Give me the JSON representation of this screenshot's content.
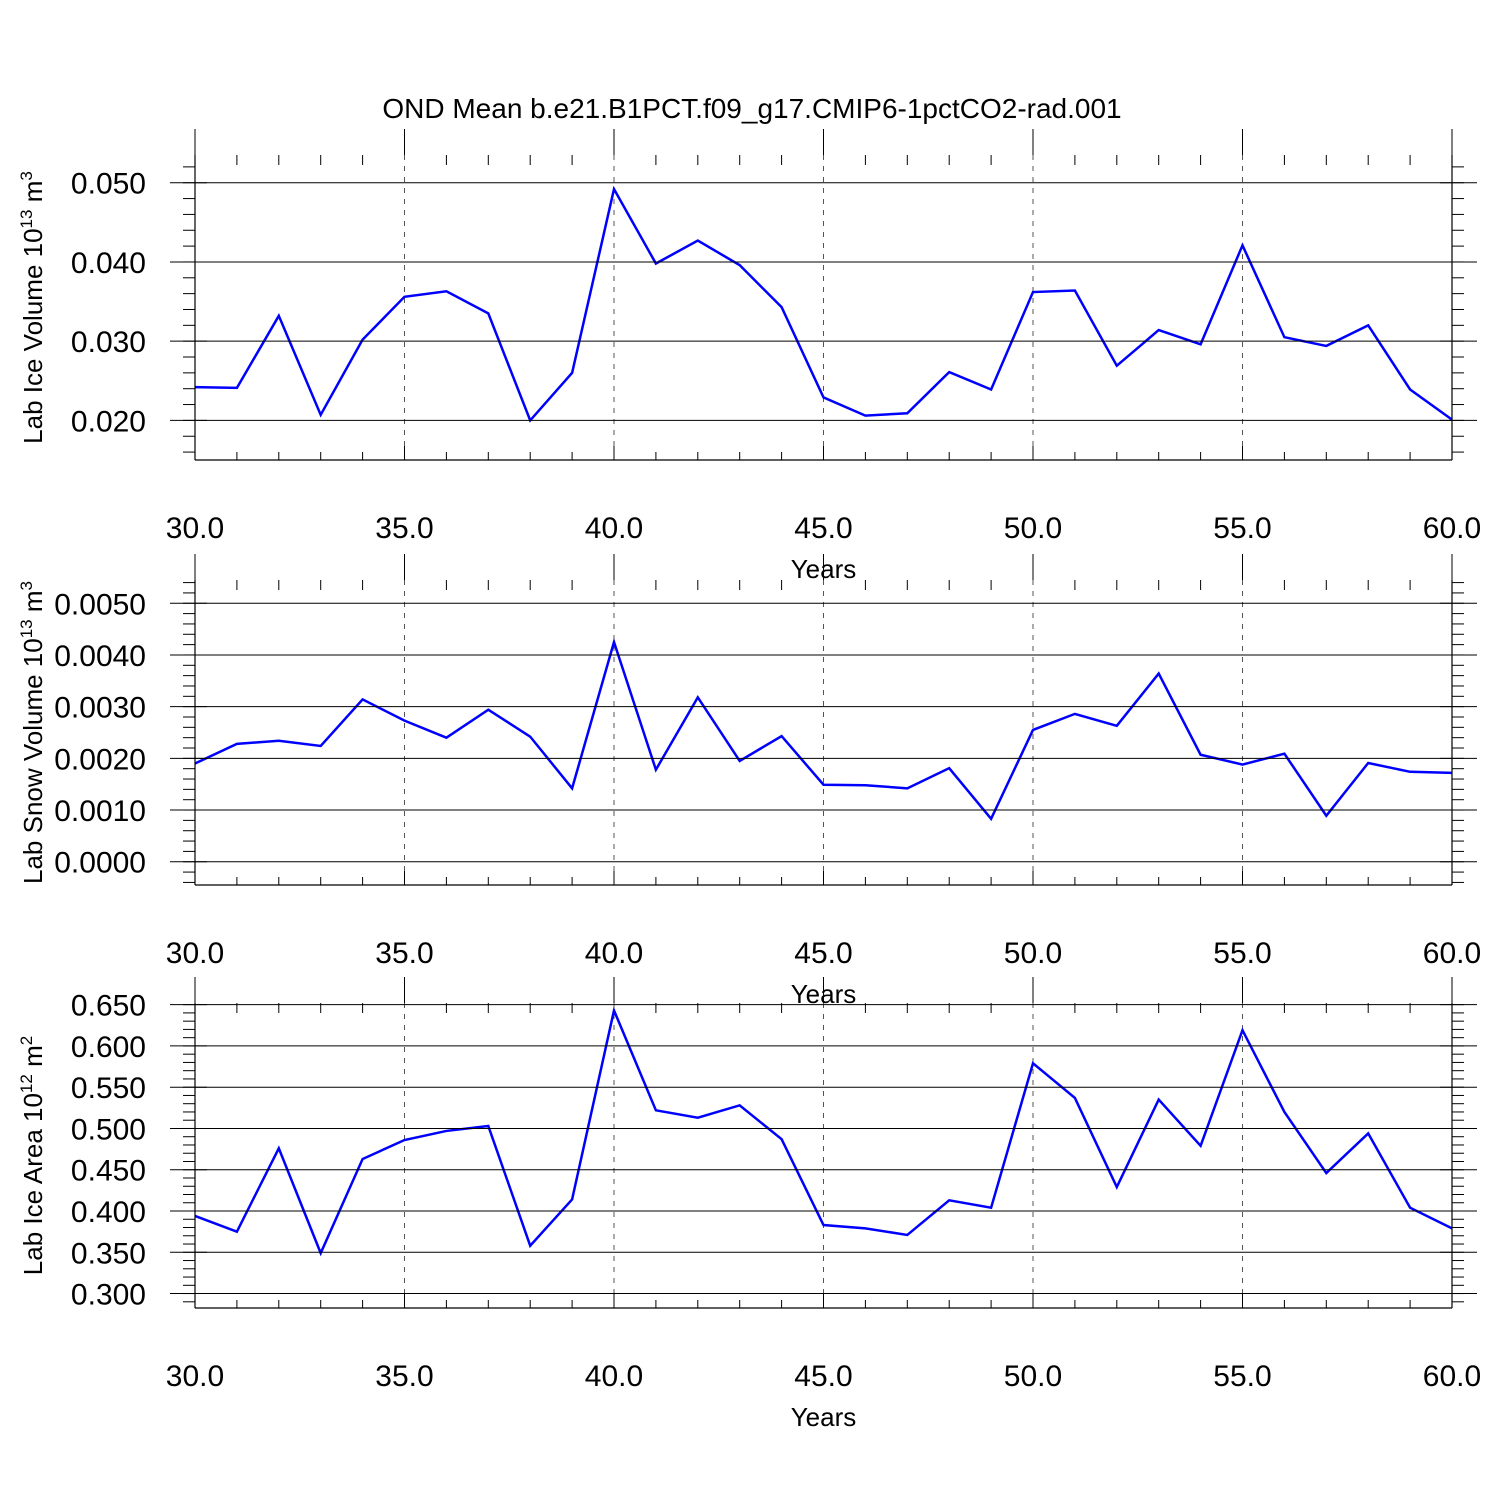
{
  "title": "OND Mean b.e21.B1PCT.f09_g17.CMIP6-1pctCO2-rad.001",
  "colors": {
    "line": "#0000ff",
    "axis": "#000000",
    "grid": "#555555"
  },
  "chart_data": [
    {
      "type": "line",
      "ylabel_main": "Lab Ice Volume 10",
      "ylabel_exp": "13",
      "ylabel_unit": " m",
      "ylabel_unit_exp": "3",
      "xlabel": "Years",
      "xlim": [
        30,
        60
      ],
      "ylim": [
        0.015,
        0.0535
      ],
      "yticks": [
        0.02,
        0.03,
        0.04,
        0.05
      ],
      "ytick_labels": [
        "0.020",
        "0.030",
        "0.040",
        "0.050"
      ],
      "xticks": [
        30,
        35,
        40,
        45,
        50,
        55,
        60
      ],
      "xtick_labels": [
        "30.0",
        "35.0",
        "40.0",
        "45.0",
        "50.0",
        "55.0",
        "60.0"
      ],
      "grid_x": [
        35,
        40,
        45,
        50,
        55
      ],
      "x": [
        30,
        31,
        32,
        33,
        34,
        35,
        36,
        37,
        38,
        39,
        40,
        41,
        42,
        43,
        44,
        45,
        46,
        47,
        48,
        49,
        50,
        51,
        52,
        53,
        54,
        55,
        56,
        57,
        58,
        59,
        60
      ],
      "values": [
        0.0242,
        0.0241,
        0.0332,
        0.0207,
        0.0302,
        0.0356,
        0.0363,
        0.0335,
        0.02,
        0.026,
        0.0492,
        0.0398,
        0.0427,
        0.0396,
        0.0343,
        0.0229,
        0.0206,
        0.0209,
        0.0261,
        0.0239,
        0.0362,
        0.0364,
        0.0269,
        0.0314,
        0.0296,
        0.0421,
        0.0305,
        0.0294,
        0.032,
        0.0239,
        0.0201
      ]
    },
    {
      "type": "line",
      "ylabel_main": "Lab Snow Volume 10",
      "ylabel_exp": "13",
      "ylabel_unit": " m",
      "ylabel_unit_exp": "3",
      "xlabel": "Years",
      "xlim": [
        30,
        60
      ],
      "ylim": [
        -0.00045,
        0.00545
      ],
      "yticks": [
        0,
        0.001,
        0.002,
        0.003,
        0.004,
        0.005
      ],
      "ytick_labels": [
        "0.0000",
        "0.0010",
        "0.0020",
        "0.0030",
        "0.0040",
        "0.0050"
      ],
      "xticks": [
        30,
        35,
        40,
        45,
        50,
        55,
        60
      ],
      "xtick_labels": [
        "30.0",
        "35.0",
        "40.0",
        "45.0",
        "50.0",
        "55.0",
        "60.0"
      ],
      "grid_x": [
        35,
        40,
        45,
        50,
        55
      ],
      "x": [
        30,
        31,
        32,
        33,
        34,
        35,
        36,
        37,
        38,
        39,
        40,
        41,
        42,
        43,
        44,
        45,
        46,
        47,
        48,
        49,
        50,
        51,
        52,
        53,
        54,
        55,
        56,
        57,
        58,
        59,
        60
      ],
      "values": [
        0.0019,
        0.00228,
        0.00234,
        0.00224,
        0.00314,
        0.00273,
        0.0024,
        0.00294,
        0.00242,
        0.00142,
        0.00425,
        0.00178,
        0.00318,
        0.00195,
        0.00243,
        0.00149,
        0.00148,
        0.00142,
        0.00181,
        0.00083,
        0.00255,
        0.00286,
        0.00263,
        0.00364,
        0.00207,
        0.00188,
        0.00209,
        0.00089,
        0.00191,
        0.00174,
        0.00172
      ]
    },
    {
      "type": "line",
      "ylabel_main": "Lab Ice Area 10",
      "ylabel_exp": "12",
      "ylabel_unit": " m",
      "ylabel_unit_exp": "2",
      "xlabel": "Years",
      "xlim": [
        30,
        60
      ],
      "ylim": [
        0.2825,
        0.652
      ],
      "yticks": [
        0.3,
        0.35,
        0.4,
        0.45,
        0.5,
        0.55,
        0.6,
        0.65
      ],
      "ytick_labels": [
        "0.300",
        "0.350",
        "0.400",
        "0.450",
        "0.500",
        "0.550",
        "0.600",
        "0.650"
      ],
      "xticks": [
        30,
        35,
        40,
        45,
        50,
        55,
        60
      ],
      "xtick_labels": [
        "30.0",
        "35.0",
        "40.0",
        "45.0",
        "50.0",
        "55.0",
        "60.0"
      ],
      "grid_x": [
        35,
        40,
        45,
        50,
        55
      ],
      "x": [
        30,
        31,
        32,
        33,
        34,
        35,
        36,
        37,
        38,
        39,
        40,
        41,
        42,
        43,
        44,
        45,
        46,
        47,
        48,
        49,
        50,
        51,
        52,
        53,
        54,
        55,
        56,
        57,
        58,
        59,
        60
      ],
      "values": [
        0.394,
        0.375,
        0.476,
        0.349,
        0.463,
        0.486,
        0.497,
        0.503,
        0.358,
        0.414,
        0.643,
        0.522,
        0.513,
        0.528,
        0.487,
        0.383,
        0.379,
        0.371,
        0.413,
        0.404,
        0.579,
        0.537,
        0.429,
        0.535,
        0.479,
        0.619,
        0.52,
        0.446,
        0.494,
        0.404,
        0.379
      ]
    }
  ]
}
